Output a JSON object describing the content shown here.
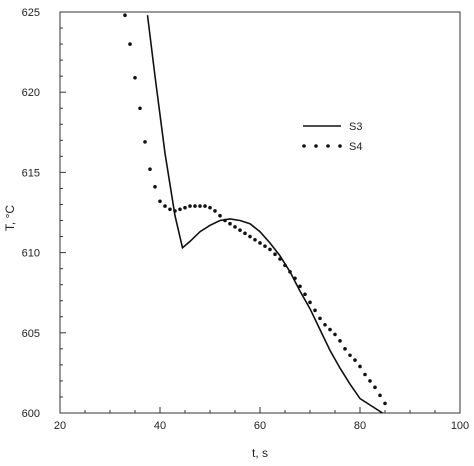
{
  "chart_data": {
    "type": "line",
    "title": "",
    "xlabel": "t, s",
    "ylabel": "T, °C",
    "xlim": [
      20,
      100
    ],
    "ylim": [
      600,
      625
    ],
    "xticks": [
      20,
      40,
      60,
      80,
      100
    ],
    "yticks": [
      600,
      605,
      610,
      615,
      620,
      625
    ],
    "grid": false,
    "legend_position": "top-right",
    "series": [
      {
        "name": "S3",
        "style": "solid",
        "color": "#111111",
        "x": [
          37.5,
          39,
          41,
          43,
          44.5,
          46,
          48,
          50,
          52,
          54,
          56,
          58,
          60,
          62,
          64,
          66,
          68,
          70,
          72,
          74,
          76,
          78,
          80,
          82,
          84.5
        ],
        "y": [
          624.8,
          621.0,
          616.2,
          612.3,
          610.3,
          610.7,
          611.3,
          611.7,
          612.0,
          612.1,
          612.0,
          611.8,
          611.3,
          610.6,
          609.8,
          608.8,
          607.6,
          606.5,
          605.2,
          603.9,
          602.8,
          601.8,
          600.9,
          600.5,
          600.0
        ]
      },
      {
        "name": "S4",
        "style": "dotted",
        "color": "#111111",
        "x": [
          33,
          34,
          35,
          36,
          37,
          38,
          39,
          40,
          41,
          42,
          43,
          44,
          45,
          46,
          47,
          48,
          49,
          50,
          51,
          52,
          53,
          54,
          55,
          56,
          57,
          58,
          59,
          60,
          61,
          62,
          63,
          64,
          65,
          66,
          67,
          68,
          69,
          70,
          71,
          72,
          73,
          74,
          75,
          76,
          77,
          78,
          79,
          80,
          81,
          82,
          83,
          84,
          85
        ],
        "y": [
          624.8,
          623.0,
          620.9,
          619.0,
          616.9,
          615.2,
          614.1,
          613.2,
          612.9,
          612.7,
          612.6,
          612.7,
          612.8,
          612.9,
          612.9,
          612.9,
          612.9,
          612.8,
          612.6,
          612.3,
          612.0,
          611.8,
          611.6,
          611.4,
          611.2,
          611.0,
          610.8,
          610.6,
          610.4,
          610.2,
          609.9,
          609.6,
          609.2,
          608.8,
          608.4,
          607.9,
          607.4,
          606.9,
          606.4,
          605.9,
          605.5,
          605.2,
          604.9,
          604.5,
          604.0,
          603.6,
          603.3,
          602.9,
          602.4,
          602.0,
          601.6,
          601.1,
          600.6
        ]
      }
    ]
  }
}
